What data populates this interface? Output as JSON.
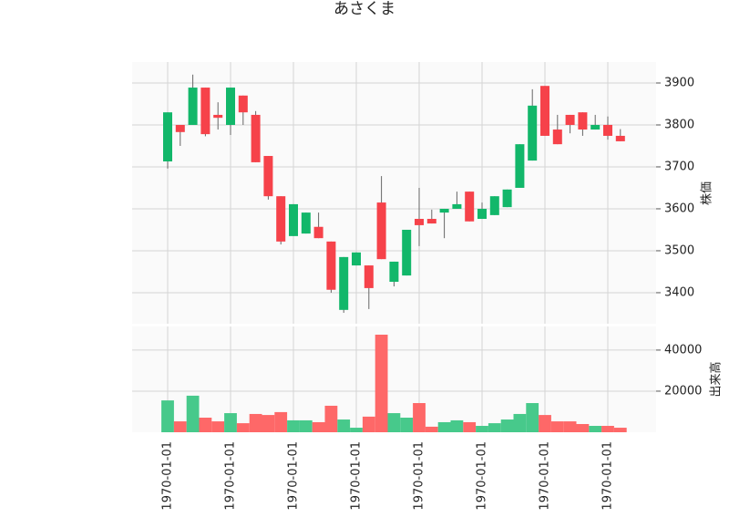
{
  "chart_data": {
    "type": "candlestick",
    "title": "あさくま",
    "ylabel": "株価",
    "volume_ylabel": "出来高",
    "open": [
      3713,
      3800,
      3800,
      3889,
      3824,
      3800,
      3870,
      3824,
      3726,
      3630,
      3535,
      3541,
      3557,
      3522,
      3359,
      3465,
      3465,
      3615,
      3426,
      3441,
      3576,
      3576,
      3591,
      3600,
      3641,
      3576,
      3585,
      3604,
      3650,
      3715,
      3893,
      3789,
      3824,
      3830,
      3789,
      3800,
      3774
    ],
    "high": [
      3830,
      3800,
      3920,
      3889,
      3854,
      3889,
      3870,
      3833,
      3726,
      3630,
      3611,
      3591,
      3591,
      3522,
      3485,
      3496,
      3465,
      3678,
      3474,
      3550,
      3650,
      3598,
      3600,
      3641,
      3641,
      3615,
      3630,
      3646,
      3754,
      3885,
      3893,
      3824,
      3824,
      3830,
      3824,
      3820,
      3790
    ],
    "low": [
      3696,
      3750,
      3800,
      3773,
      3789,
      3776,
      3800,
      3711,
      3622,
      3515,
      3535,
      3541,
      3530,
      3400,
      3352,
      3465,
      3361,
      3480,
      3415,
      3441,
      3511,
      3565,
      3530,
      3600,
      3570,
      3576,
      3585,
      3604,
      3650,
      3715,
      3774,
      3754,
      3780,
      3774,
      3789,
      3765,
      3761
    ],
    "close": [
      3830,
      3783,
      3889,
      3778,
      3817,
      3889,
      3830,
      3711,
      3630,
      3522,
      3611,
      3591,
      3530,
      3407,
      3485,
      3496,
      3411,
      3480,
      3474,
      3550,
      3561,
      3565,
      3600,
      3611,
      3570,
      3600,
      3630,
      3646,
      3754,
      3846,
      3774,
      3754,
      3800,
      3789,
      3800,
      3774,
      3761
    ],
    "volume": [
      15500,
      5300,
      17800,
      7100,
      5300,
      9300,
      4400,
      8900,
      8400,
      9800,
      5800,
      5800,
      4900,
      12900,
      6200,
      2200,
      7600,
      47500,
      9300,
      7100,
      14200,
      2700,
      4900,
      5800,
      4900,
      3100,
      4400,
      6200,
      8900,
      14200,
      8400,
      5300,
      5300,
      4000,
      3100,
      3100,
      2200
    ],
    "up_color": "#12b76a",
    "down_color": "#f6424a",
    "volume_up_color": "#47c98b",
    "volume_down_color": "#fe6868",
    "ylim": [
      3326,
      3950
    ],
    "yticks": [
      3400,
      3500,
      3600,
      3700,
      3800,
      3900
    ],
    "volume_ylim": [
      0,
      51500
    ],
    "volume_yticks": [
      20000,
      40000
    ],
    "xticks": [
      {
        "value": 0,
        "label": "1970-01-01"
      },
      {
        "value": 5,
        "label": "1970-01-01"
      },
      {
        "value": 10,
        "label": "1970-01-01"
      },
      {
        "value": 15,
        "label": "1970-01-01"
      },
      {
        "value": 20,
        "label": "1970-01-01"
      },
      {
        "value": 25,
        "label": "1970-01-01"
      },
      {
        "value": 30,
        "label": "1970-01-01"
      },
      {
        "value": 35,
        "label": "1970-01-01"
      }
    ],
    "grid": true
  }
}
